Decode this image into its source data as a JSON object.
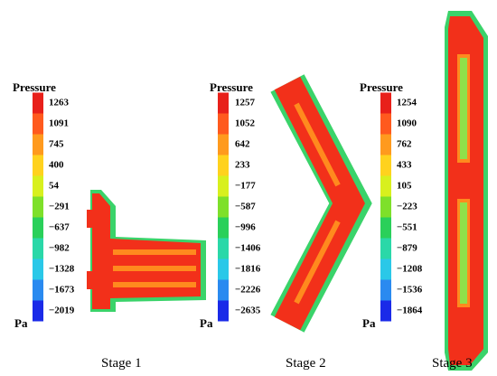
{
  "panels": [
    {
      "legend_title": "Pressure",
      "ticks": [
        "1263",
        "1091",
        "745",
        "400",
        "54",
        "−291",
        "−637",
        "−982",
        "−1328",
        "−1673",
        "−2019"
      ],
      "unit": "Pa",
      "caption": "Stage 1"
    },
    {
      "legend_title": "Pressure",
      "ticks": [
        "1257",
        "1052",
        "642",
        "233",
        "−177",
        "−587",
        "−996",
        "−1406",
        "−1816",
        "−2226",
        "−2635"
      ],
      "unit": "Pa",
      "caption": "Stage 2"
    },
    {
      "legend_title": "Pressure",
      "ticks": [
        "1254",
        "1090",
        "762",
        "433",
        "105",
        "−223",
        "−551",
        "−879",
        "−1208",
        "−1536",
        "−1864"
      ],
      "unit": "Pa",
      "caption": "Stage 3"
    }
  ]
}
